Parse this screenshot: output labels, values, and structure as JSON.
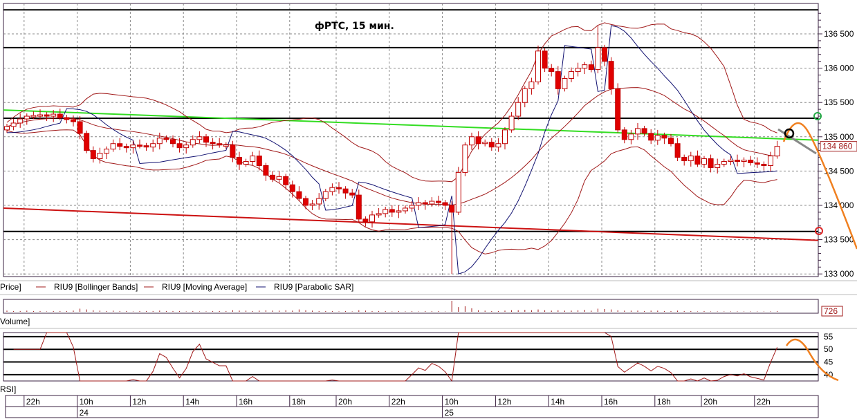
{
  "chart_data": {
    "type": "candlestick",
    "title": "фРТС,  15 мин.",
    "instrument": "RIU9",
    "price_axis": {
      "ylim": [
        132950,
        136900
      ],
      "tick_labels": [
        "136 500",
        "136 000",
        "135 500",
        "135 000",
        "134 500",
        "134 000",
        "133 500",
        "133 000"
      ],
      "last_price_label": "134 860"
    },
    "closes": [
      135150,
      135200,
      135260,
      135300,
      135310,
      135320,
      135300,
      135330,
      135280,
      135250,
      135220,
      135050,
      134800,
      134680,
      134760,
      134820,
      134900,
      134860,
      134840,
      134880,
      134870,
      134850,
      134900,
      134980,
      134960,
      134900,
      134840,
      134880,
      134960,
      135000,
      134920,
      134900,
      134880,
      134880,
      134700,
      134600,
      134640,
      134720,
      134580,
      134440,
      134380,
      134420,
      134300,
      134200,
      134100,
      134000,
      134020,
      134100,
      134200,
      134260,
      134240,
      134180,
      134150,
      133800,
      133760,
      133860,
      133880,
      133940,
      133900,
      133920,
      133960,
      134000,
      134040,
      134020,
      134060,
      134040,
      134000,
      133900,
      134480,
      134880,
      135000,
      134900,
      134920,
      134850,
      134900,
      135100,
      135300,
      135500,
      135700,
      135800,
      136250,
      136000,
      135950,
      135700,
      135850,
      135950,
      136000,
      136050,
      135980,
      136300,
      136100,
      135700,
      135100,
      134960,
      135040,
      135120,
      135050,
      134950,
      135020,
      134980,
      134900,
      134700,
      134650,
      134720,
      134600,
      134680,
      134550,
      134600,
      134640,
      134660,
      134640,
      134660,
      134620,
      134600,
      134580,
      134720,
      134860
    ],
    "extreme_wicks": [
      {
        "bar": 67,
        "low": 133000
      },
      {
        "bar": 89,
        "high": 136620
      }
    ],
    "volumes": [
      3,
      2,
      2,
      3,
      2,
      2,
      1,
      2,
      2,
      2,
      3,
      8,
      6,
      4,
      3,
      2,
      3,
      2,
      2,
      1,
      2,
      2,
      2,
      3,
      2,
      2,
      2,
      1,
      2,
      1,
      1,
      2,
      2,
      2,
      4,
      3,
      3,
      2,
      3,
      4,
      3,
      3,
      4,
      3,
      6,
      4,
      3,
      2,
      2,
      2,
      1,
      2,
      1,
      4,
      3,
      2,
      2,
      2,
      1,
      2,
      1,
      2,
      1,
      2,
      2,
      2,
      1,
      28,
      12,
      14,
      9,
      4,
      3,
      2,
      2,
      3,
      4,
      4,
      5,
      4,
      6,
      4,
      3,
      4,
      3,
      3,
      4,
      5,
      3,
      8,
      7,
      6,
      4,
      3,
      3,
      3,
      2,
      3,
      3,
      2,
      2,
      3,
      2,
      2,
      1,
      2,
      1,
      1,
      1,
      1,
      1,
      1,
      1,
      1,
      1,
      1,
      2
    ],
    "volume_last_label": "726",
    "rsi_axis": {
      "ylim": [
        37.5,
        56.6
      ],
      "tick_labels": [
        "55",
        "50",
        "45",
        "40"
      ]
    },
    "horizontal_levels": [
      136850,
      136300,
      135270,
      133620
    ],
    "trendlines": [
      {
        "color": "#33dd22",
        "from": [
          0,
          135390
        ],
        "to": [
          116,
          134950
        ]
      },
      {
        "color": "#cc1111",
        "from": [
          0,
          133960
        ],
        "to": [
          116,
          133490
        ]
      }
    ],
    "legend": [
      {
        "name": "RIU9 [Bollinger Bands]",
        "color": "#a01818"
      },
      {
        "name": "RIU9 [Moving Average]",
        "color": "#a01818"
      },
      {
        "name": "RIU9 [Parabolic SAR]",
        "color": "#101070"
      }
    ],
    "panel_labels": {
      "price": "Price]",
      "volume": "Volume]",
      "rsi": "RSI]"
    },
    "time_axis": {
      "hours": [
        "22h",
        "10h",
        "12h",
        "14h",
        "16h",
        "18h",
        "20h",
        "22h",
        "10h",
        "12h",
        "14h",
        "16h",
        "18h",
        "20h",
        "22h"
      ],
      "hour_bars": [
        3,
        11,
        19,
        27,
        35,
        43,
        50,
        58,
        66,
        74,
        82,
        90,
        98,
        105,
        113
      ],
      "days": [
        {
          "label": "24",
          "bar": 11
        },
        {
          "label": "25",
          "bar": 66
        }
      ]
    },
    "annotations": {
      "forecast_color": "#f08020",
      "circle_colors": [
        "#000000",
        "#22aa44",
        "#dd2222"
      ]
    }
  }
}
